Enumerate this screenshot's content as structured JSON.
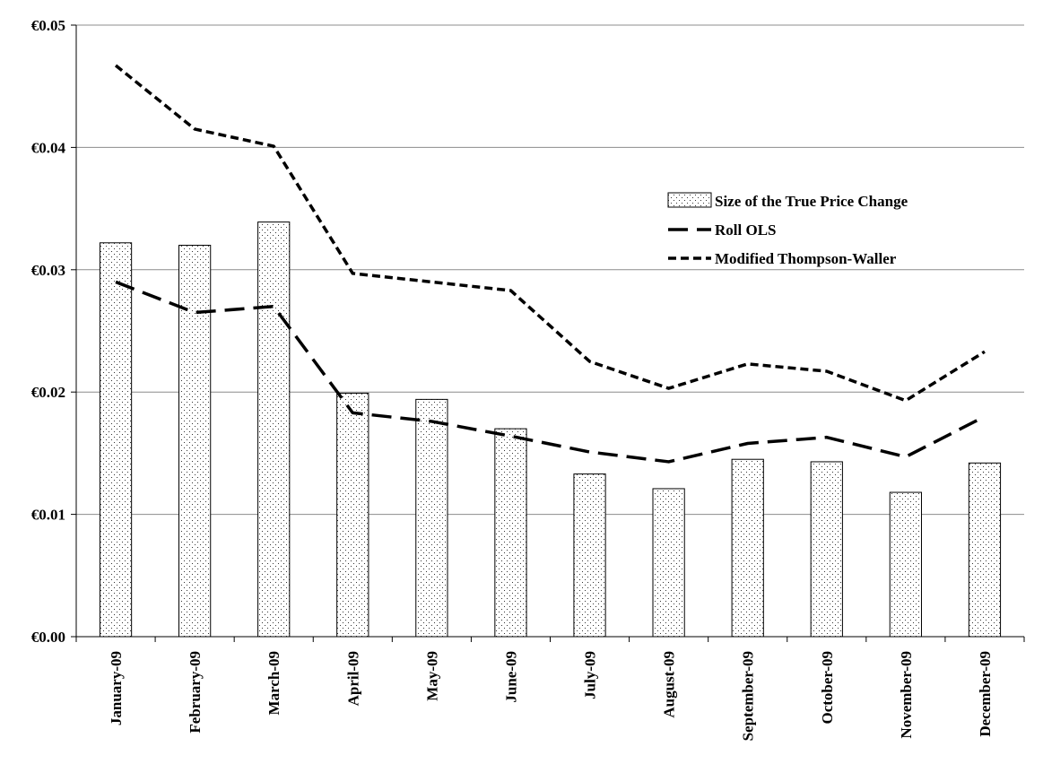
{
  "chart_data": {
    "type": "bar",
    "categories": [
      "January-09",
      "February-09",
      "March-09",
      "April-09",
      "May-09",
      "June-09",
      "July-09",
      "August-09",
      "September-09",
      "October-09",
      "November-09",
      "December-09"
    ],
    "series": [
      {
        "name": "Size of the True Price Change",
        "type": "bar",
        "color": "#ffffff",
        "values": [
          0.0322,
          0.032,
          0.0339,
          0.0199,
          0.0194,
          0.017,
          0.0133,
          0.0121,
          0.0145,
          0.0143,
          0.0118,
          0.0142
        ]
      },
      {
        "name": "Roll OLS",
        "type": "line",
        "dash": "long-dash",
        "color": "#000000",
        "values": [
          0.029,
          0.0265,
          0.027,
          0.0183,
          0.0176,
          0.0164,
          0.0151,
          0.0143,
          0.0158,
          0.0163,
          0.0147,
          0.018
        ]
      },
      {
        "name": "Modified Thompson-Waller",
        "type": "line",
        "dash": "short-dash",
        "color": "#000000",
        "values": [
          0.0467,
          0.0415,
          0.0401,
          0.0297,
          0.029,
          0.0283,
          0.0225,
          0.0203,
          0.0223,
          0.0217,
          0.0193,
          0.0233
        ]
      }
    ],
    "ylim": [
      0,
      0.05
    ],
    "yticks": [
      0,
      0.01,
      0.02,
      0.03,
      0.04,
      0.05
    ],
    "ytick_labels": [
      "€0.00",
      "€0.01",
      "€0.02",
      "€0.03",
      "€0.04",
      "€0.05"
    ],
    "grid": true,
    "legend_position": "top-right, inside plot",
    "title": "",
    "xlabel": "",
    "ylabel": ""
  }
}
